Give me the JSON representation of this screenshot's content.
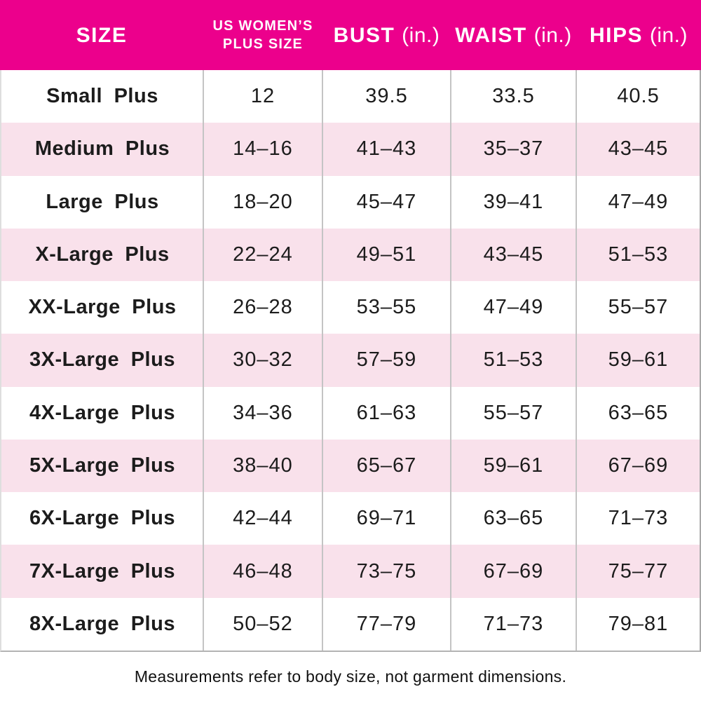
{
  "header": {
    "columns": [
      {
        "title": "SIZE",
        "unit": ""
      },
      {
        "title_line1": "US WOMEN’S",
        "title_line2": "PLUS SIZE"
      },
      {
        "title": "BUST",
        "unit": "(in.)"
      },
      {
        "title": "WAIST",
        "unit": "(in.)"
      },
      {
        "title": "HIPS",
        "unit": "(in.)"
      }
    ]
  },
  "rows": [
    {
      "size": "Small Plus",
      "plus_size": "12",
      "bust": "39.5",
      "waist": "33.5",
      "hips": "40.5"
    },
    {
      "size": "Medium Plus",
      "plus_size": "14–16",
      "bust": "41–43",
      "waist": "35–37",
      "hips": "43–45"
    },
    {
      "size": "Large Plus",
      "plus_size": "18–20",
      "bust": "45–47",
      "waist": "39–41",
      "hips": "47–49"
    },
    {
      "size": "X-Large Plus",
      "plus_size": "22–24",
      "bust": "49–51",
      "waist": "43–45",
      "hips": "51–53"
    },
    {
      "size": "XX-Large Plus",
      "plus_size": "26–28",
      "bust": "53–55",
      "waist": "47–49",
      "hips": "55–57"
    },
    {
      "size": "3X-Large Plus",
      "plus_size": "30–32",
      "bust": "57–59",
      "waist": "51–53",
      "hips": "59–61"
    },
    {
      "size": "4X-Large Plus",
      "plus_size": "34–36",
      "bust": "61–63",
      "waist": "55–57",
      "hips": "63–65"
    },
    {
      "size": "5X-Large Plus",
      "plus_size": "38–40",
      "bust": "65–67",
      "waist": "59–61",
      "hips": "67–69"
    },
    {
      "size": "6X-Large Plus",
      "plus_size": "42–44",
      "bust": "69–71",
      "waist": "63–65",
      "hips": "71–73"
    },
    {
      "size": "7X-Large Plus",
      "plus_size": "46–48",
      "bust": "73–75",
      "waist": "67–69",
      "hips": "75–77"
    },
    {
      "size": "8X-Large Plus",
      "plus_size": "50–52",
      "bust": "77–79",
      "waist": "71–73",
      "hips": "79–81"
    }
  ],
  "footnote": "Measurements refer to body size, not garment dimensions.",
  "colors": {
    "header_background": "#EC008C",
    "header_text": "#FFFFFF",
    "stripe_pink": "#F9E1EB",
    "row_white": "#FFFFFF",
    "body_text": "#1C1C1C",
    "divider_gray": "#C4C4C4"
  },
  "chart_data": {
    "type": "table",
    "title": "US Women's Plus Size Chart",
    "columns": [
      "SIZE",
      "US WOMEN'S PLUS SIZE",
      "BUST (in.)",
      "WAIST (in.)",
      "HIPS (in.)"
    ],
    "rows": [
      [
        "Small Plus",
        "12",
        "39.5",
        "33.5",
        "40.5"
      ],
      [
        "Medium Plus",
        "14–16",
        "41–43",
        "35–37",
        "43–45"
      ],
      [
        "Large Plus",
        "18–20",
        "45–47",
        "39–41",
        "47–49"
      ],
      [
        "X-Large Plus",
        "22–24",
        "49–51",
        "43–45",
        "51–53"
      ],
      [
        "XX-Large Plus",
        "26–28",
        "53–55",
        "47–49",
        "55–57"
      ],
      [
        "3X-Large Plus",
        "30–32",
        "57–59",
        "51–53",
        "59–61"
      ],
      [
        "4X-Large Plus",
        "34–36",
        "61–63",
        "55–57",
        "63–65"
      ],
      [
        "5X-Large Plus",
        "38–40",
        "65–67",
        "59–61",
        "67–69"
      ],
      [
        "6X-Large Plus",
        "42–44",
        "69–71",
        "63–65",
        "71–73"
      ],
      [
        "7X-Large Plus",
        "46–48",
        "73–75",
        "67–69",
        "75–77"
      ],
      [
        "8X-Large Plus",
        "50–52",
        "77–79",
        "71–73",
        "79–81"
      ]
    ],
    "footnote": "Measurements refer to body size, not garment dimensions.",
    "layout": {
      "striped_rows": true,
      "stripe_start": "row 2",
      "grid": "vertical column dividers only",
      "legend": "none"
    }
  }
}
